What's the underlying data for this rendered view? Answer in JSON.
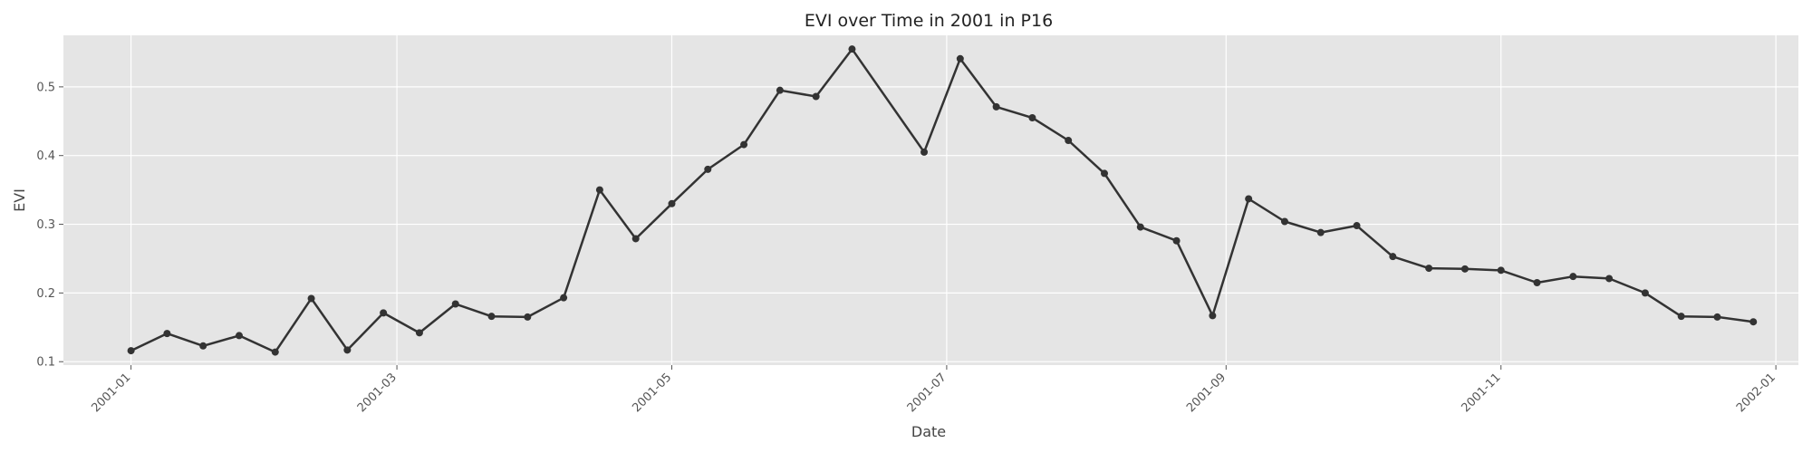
{
  "chart_data": {
    "type": "line",
    "title": "EVI over Time in 2001 in P16",
    "xlabel": "Date",
    "ylabel": "EVI",
    "xlim": [
      "2000-12-17",
      "2002-01-06"
    ],
    "ylim": [
      0.095,
      0.575
    ],
    "x_ticks": [
      "2001-01",
      "2001-03",
      "2001-05",
      "2001-07",
      "2001-09",
      "2001-11",
      "2002-01"
    ],
    "y_ticks": [
      "0.1",
      "0.2",
      "0.3",
      "0.4",
      "0.5"
    ],
    "grid": true,
    "colors": {
      "background": "#e5e5e5",
      "grid": "#ffffff",
      "line": "#333333"
    },
    "series": [
      {
        "x": [
          "2001-01-01",
          "2001-01-09",
          "2001-01-17",
          "2001-01-25",
          "2001-02-02",
          "2001-02-10",
          "2001-02-18",
          "2001-02-26",
          "2001-03-06",
          "2001-03-14",
          "2001-03-22",
          "2001-03-30",
          "2001-04-07",
          "2001-04-15",
          "2001-04-23",
          "2001-05-01",
          "2001-05-09",
          "2001-05-17",
          "2001-05-25",
          "2001-06-02",
          "2001-06-10",
          "2001-06-26",
          "2001-07-04",
          "2001-07-12",
          "2001-07-20",
          "2001-07-28",
          "2001-08-05",
          "2001-08-13",
          "2001-08-21",
          "2001-08-29",
          "2001-09-06",
          "2001-09-14",
          "2001-09-22",
          "2001-09-30",
          "2001-10-08",
          "2001-10-16",
          "2001-10-24",
          "2001-11-01",
          "2001-11-09",
          "2001-11-17",
          "2001-11-25",
          "2001-12-03",
          "2001-12-11",
          "2001-12-19",
          "2001-12-27"
        ],
        "y": [
          0.116,
          0.141,
          0.123,
          0.138,
          0.114,
          0.192,
          0.117,
          0.171,
          0.142,
          0.184,
          0.166,
          0.165,
          0.193,
          0.35,
          0.279,
          0.33,
          0.38,
          0.416,
          0.495,
          0.486,
          0.555,
          0.405,
          0.541,
          0.471,
          0.455,
          0.422,
          0.374,
          0.296,
          0.276,
          0.167,
          0.337,
          0.304,
          0.288,
          0.298,
          0.253,
          0.236,
          0.235,
          0.233,
          0.215,
          0.224,
          0.221,
          0.2,
          0.166,
          0.165,
          0.158
        ]
      }
    ]
  }
}
